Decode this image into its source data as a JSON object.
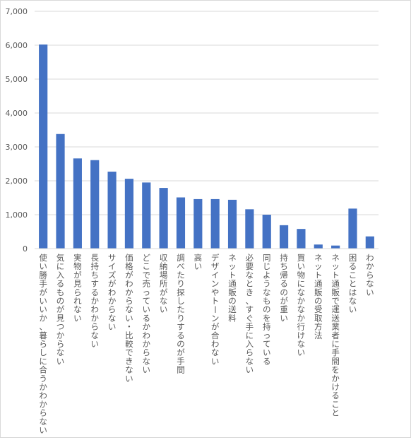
{
  "chart_data": {
    "type": "bar",
    "title": "",
    "xlabel": "",
    "ylabel": "",
    "ylim": [
      0,
      7000
    ],
    "yticks": [
      "0",
      "1,000",
      "2,000",
      "3,000",
      "4,000",
      "5,000",
      "6,000",
      "7,000"
    ],
    "grid": true,
    "legend": "none",
    "bar_color": "#4472C4",
    "categories": [
      "使い勝手がいいか、暮らしに合うかわからない",
      "気に入るものが見つからない",
      "実物が見られない",
      "長持ちするかわからない",
      "サイズがわからない",
      "価格がわからない・比較できない",
      "どこで売っているかわからない",
      "収納場所がない",
      "調べたり探したりするのが手間",
      "高い",
      "デザインやトーンが合わない",
      "ネット通販の送料",
      "必要なとき、すぐ手に入らない",
      "同じようなものを持っている",
      "持ち帰るのが重い",
      "買い物になかなか行けない",
      "ネット通販の受取方法",
      "ネット通販で運送業者に手間をかけること",
      "困ることはない",
      "わからない"
    ],
    "values": [
      6020,
      3380,
      2660,
      2610,
      2270,
      2060,
      1950,
      1790,
      1510,
      1460,
      1460,
      1440,
      1160,
      1000,
      690,
      580,
      120,
      90,
      1180,
      360
    ]
  }
}
